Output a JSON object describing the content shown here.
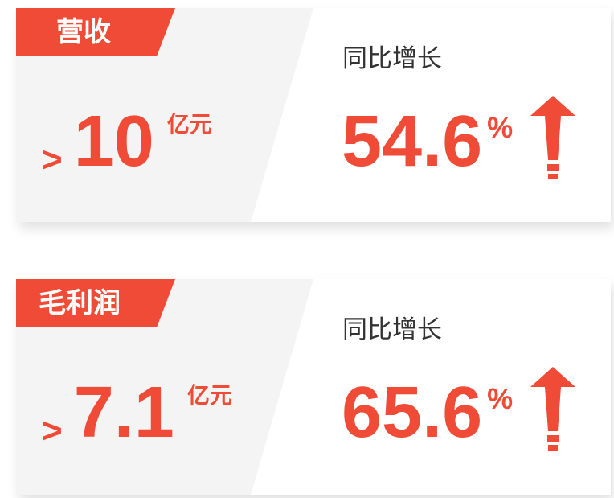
{
  "accent": "#ef4b36",
  "cards": [
    {
      "label": "营收",
      "prefix": ">",
      "value": "10",
      "unit": "亿元",
      "growth_label": "同比增长",
      "growth": "54.6",
      "percent": "%",
      "arrow_icon": "arrow-up-icon"
    },
    {
      "label": "毛利润",
      "prefix": ">",
      "value": "7.1",
      "unit": "亿元",
      "growth_label": "同比增长",
      "growth": "65.6",
      "percent": "%",
      "arrow_icon": "arrow-up-icon"
    }
  ]
}
